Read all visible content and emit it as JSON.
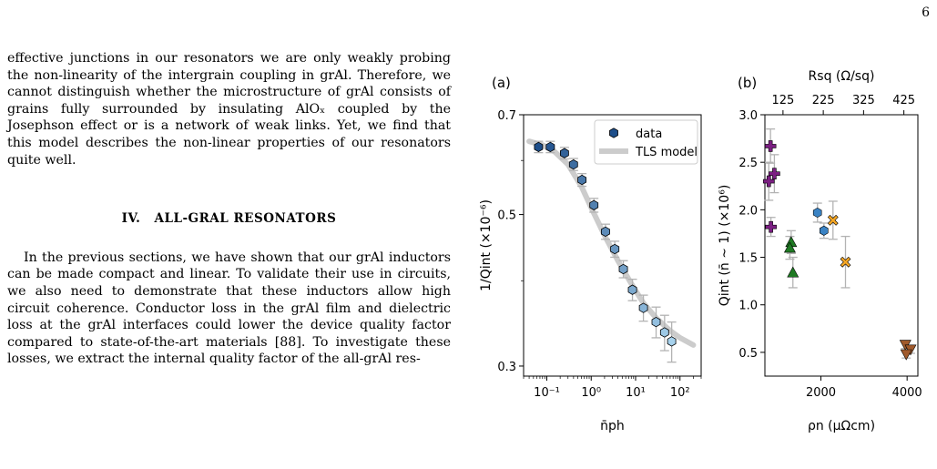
{
  "page": {
    "number": "6",
    "p1_text": "effective junctions in our resonators we are only weakly probing the non-linearity of the intergrain coupling in grAl. Therefore, we cannot distinguish whether the microstructure of grAl consists of grains fully surrounded by insulating AlOₓ coupled by the Josephson effect or is a network of weak links. Yet, we find that this model describes the non-linear properties of our resonators quite well.",
    "section_number": "IV.",
    "section_title": "ALL-GRAL RESONATORS",
    "p2_text": "In the previous sections, we have shown that our grAl inductors can be made compact and linear. To validate their use in circuits, we also need to demonstrate that these inductors allow high circuit coherence. Conductor loss in the grAl film and dielectric loss at the grAl interfaces could lower the device quality factor compared to state-of-the-art materials [88]. To investigate these losses, we extract the internal quality factor of the all-grAl res-"
  },
  "colors": {
    "marker_light": "#a8d3ee",
    "marker_dark": "#1d4e8a",
    "tls_model": "#cccccc",
    "errorbar": "#b3b3b3",
    "purple": "#7b1f82",
    "green": "#1f7a23",
    "orange": "#f5a623",
    "blue_hex": "#3a83c4",
    "brown": "#a05a2c"
  },
  "chart_data": [
    {
      "panel_label": "(a)",
      "type": "scatter",
      "xscale": "log",
      "xlim": [
        0.03,
        300
      ],
      "ylim": [
        0.29,
        0.7
      ],
      "xlabel": "n̄ph",
      "ylabel": "1/Qint (×10⁻⁶)",
      "xticks": [
        0.1,
        1,
        10,
        100
      ],
      "xtick_labels": [
        "10⁻¹",
        "10⁰",
        "10¹",
        "10²"
      ],
      "yticks": [
        0.3,
        0.5,
        0.7
      ],
      "ytick_labels": [
        "0.3",
        "0.5",
        "0.7"
      ],
      "legend": [
        "data",
        "TLS model"
      ],
      "legend_position": "top-right",
      "series": [
        {
          "name": "data",
          "marker": "hexagon",
          "x": [
            0.065,
            0.12,
            0.25,
            0.4,
            0.62,
            1.15,
            2.1,
            3.4,
            5.3,
            8.5,
            15,
            29,
            45,
            65
          ],
          "y": [
            0.628,
            0.628,
            0.615,
            0.592,
            0.562,
            0.516,
            0.472,
            0.445,
            0.416,
            0.388,
            0.365,
            0.348,
            0.336,
            0.326
          ],
          "err": [
            0.012,
            0.012,
            0.012,
            0.012,
            0.012,
            0.012,
            0.012,
            0.012,
            0.012,
            0.014,
            0.016,
            0.018,
            0.02,
            0.022
          ]
        },
        {
          "name": "TLS model",
          "type": "line",
          "x": [
            0.04,
            0.08,
            0.15,
            0.3,
            0.6,
            1,
            2,
            4,
            8,
            15,
            30,
            60,
            100,
            200
          ],
          "y": [
            0.64,
            0.632,
            0.618,
            0.592,
            0.55,
            0.512,
            0.466,
            0.428,
            0.396,
            0.371,
            0.352,
            0.338,
            0.33,
            0.322
          ]
        }
      ]
    },
    {
      "panel_label": "(b)",
      "type": "scatter",
      "xlim": [
        700,
        4250
      ],
      "ylim": [
        0.25,
        3.0
      ],
      "xlabel": "ρn (µΩcm)",
      "ylabel": "Qint (n̄ ~ 1) (×10⁶)",
      "top_xlabel": "Rsq (Ω/sq)",
      "xticks": [
        2000,
        4000
      ],
      "xtick_labels": [
        "2000",
        "4000"
      ],
      "yticks": [
        0.5,
        1.0,
        1.5,
        2.0,
        2.5,
        3.0
      ],
      "ytick_labels": [
        "0.5",
        "1.0",
        "1.5",
        "2.0",
        "2.5",
        "3.0"
      ],
      "top_xticks": [
        125,
        225,
        325,
        425
      ],
      "top_xtick_labels": [
        "125",
        "225",
        "325",
        "425"
      ],
      "top_xtick_positions": [
        1120,
        2055,
        2990,
        3925
      ],
      "series": [
        {
          "group": "purple",
          "marker": "plus",
          "points": [
            {
              "x": 830,
              "y": 2.67,
              "err": 0.18
            },
            {
              "x": 920,
              "y": 2.38,
              "err": 0.2
            },
            {
              "x": 790,
              "y": 2.3,
              "err": 0.2
            },
            {
              "x": 840,
              "y": 1.82,
              "err": 0.1
            }
          ]
        },
        {
          "group": "green",
          "marker": "triangle-up",
          "points": [
            {
              "x": 1310,
              "y": 1.66,
              "err": 0.12
            },
            {
              "x": 1280,
              "y": 1.6,
              "err": 0.12
            },
            {
              "x": 1350,
              "y": 1.34,
              "err": 0.16
            }
          ]
        },
        {
          "group": "blue",
          "marker": "hexagon",
          "points": [
            {
              "x": 1920,
              "y": 1.97,
              "err": 0.1
            },
            {
              "x": 2070,
              "y": 1.78,
              "err": 0.08
            }
          ]
        },
        {
          "group": "orange",
          "marker": "x",
          "points": [
            {
              "x": 2280,
              "y": 1.89,
              "err": 0.2
            },
            {
              "x": 2570,
              "y": 1.45,
              "err": 0.27
            }
          ]
        },
        {
          "group": "brown",
          "marker": "triangle-down",
          "points": [
            {
              "x": 3960,
              "y": 0.58,
              "err": 0.04
            },
            {
              "x": 4080,
              "y": 0.53,
              "err": 0.04
            },
            {
              "x": 3980,
              "y": 0.48,
              "err": 0.04
            }
          ]
        }
      ]
    }
  ]
}
